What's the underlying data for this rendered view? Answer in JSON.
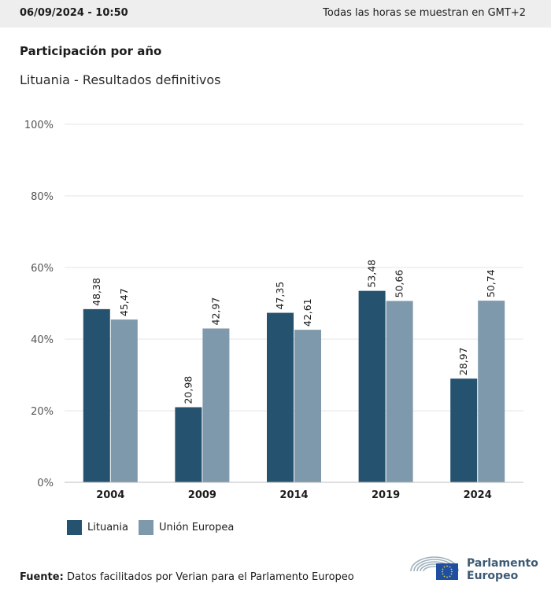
{
  "header": {
    "datetime": "06/09/2024 - 10:50",
    "timezone_note": "Todas las horas se muestran en GMT+2"
  },
  "chart_title": "Participación por año",
  "chart_subtitle": "Lituania - Resultados definitivos",
  "colors": {
    "lituania": "#25526f",
    "ue": "#7e99ac",
    "grid": "#e6e6e6",
    "axis": "#bdbdbd"
  },
  "chart_data": {
    "type": "bar",
    "categories": [
      "2004",
      "2009",
      "2014",
      "2019",
      "2024"
    ],
    "series": [
      {
        "name": "Lituania",
        "values": [
          48.38,
          20.98,
          47.35,
          53.48,
          28.97
        ],
        "labels": [
          "48,38",
          "20,98",
          "47,35",
          "53,48",
          "28,97"
        ]
      },
      {
        "name": "Unión Europea",
        "values": [
          45.47,
          42.97,
          42.61,
          50.66,
          50.74
        ],
        "labels": [
          "45,47",
          "42,97",
          "42,61",
          "50,66",
          "50,74"
        ]
      }
    ],
    "ylim": [
      0,
      100
    ],
    "yticks": [
      0,
      20,
      40,
      60,
      80,
      100
    ],
    "ytick_labels": [
      "0%",
      "20%",
      "40%",
      "60%",
      "80%",
      "100%"
    ],
    "grid": true,
    "legend_position": "bottom-left"
  },
  "source": {
    "label": "Fuente:",
    "text": "Datos facilitados por Verian para el Parlamento Europeo"
  },
  "logo": {
    "line1": "Parlamento",
    "line2": "Europeo"
  }
}
